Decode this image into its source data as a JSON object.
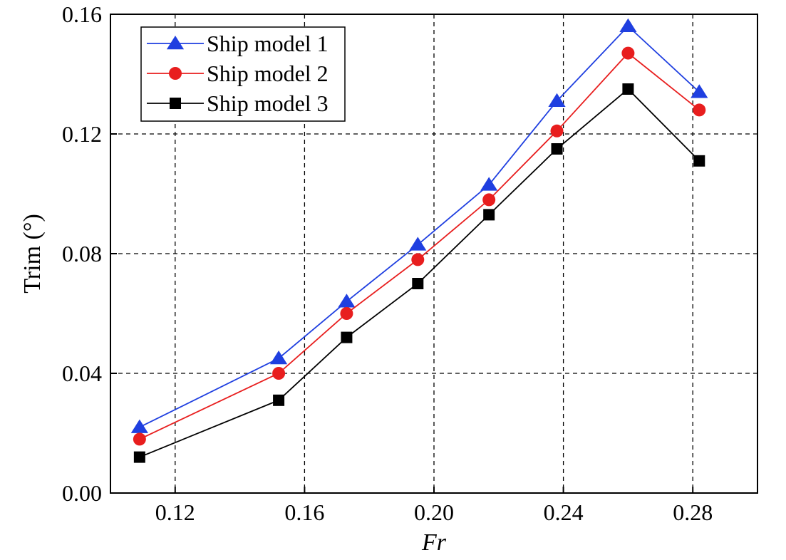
{
  "chart_data": {
    "type": "line",
    "xlabel": "Fr",
    "ylabel": "Trim (°)",
    "xlim": [
      0.1,
      0.3
    ],
    "ylim": [
      0.0,
      0.16
    ],
    "grid": true,
    "legend_position": "top-left",
    "x_ticks": [
      {
        "value": 0.12,
        "label": "0.12"
      },
      {
        "value": 0.16,
        "label": "0.16"
      },
      {
        "value": 0.2,
        "label": "0.20"
      },
      {
        "value": 0.24,
        "label": "0.24"
      },
      {
        "value": 0.28,
        "label": "0.28"
      }
    ],
    "y_ticks": [
      {
        "value": 0.0,
        "label": "0.00"
      },
      {
        "value": 0.04,
        "label": "0.04"
      },
      {
        "value": 0.08,
        "label": "0.08"
      },
      {
        "value": 0.12,
        "label": "0.12"
      },
      {
        "value": 0.16,
        "label": "0.16"
      }
    ],
    "x": [
      0.109,
      0.152,
      0.173,
      0.195,
      0.217,
      0.238,
      0.26,
      0.282
    ],
    "series": [
      {
        "name": "Ship model 1",
        "color": "#1f3fe0",
        "marker": "triangle",
        "values": [
          0.022,
          0.045,
          0.064,
          0.083,
          0.103,
          0.131,
          0.156,
          0.134
        ]
      },
      {
        "name": "Ship model 2",
        "color": "#e81e1e",
        "marker": "circle",
        "values": [
          0.018,
          0.04,
          0.06,
          0.078,
          0.098,
          0.121,
          0.147,
          0.128
        ]
      },
      {
        "name": "Ship model 3",
        "color": "#000000",
        "marker": "square",
        "values": [
          0.012,
          0.031,
          0.052,
          0.07,
          0.093,
          0.115,
          0.135,
          0.111
        ]
      }
    ]
  }
}
